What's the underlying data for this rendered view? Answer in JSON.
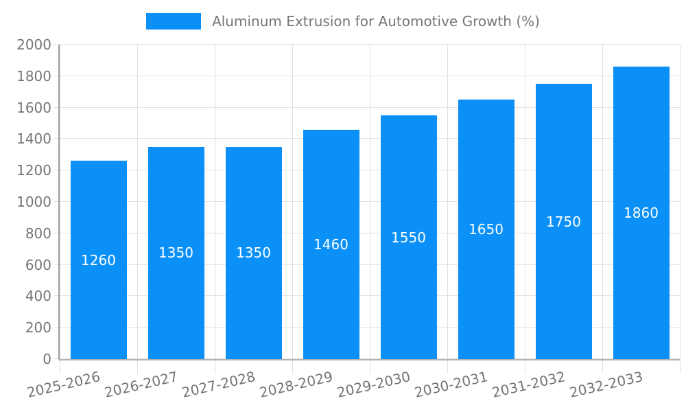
{
  "legend": {
    "label": "Aluminum Extrusion for Automotive Growth (%)"
  },
  "colors": {
    "bar": "#0a90f7",
    "bar_label": "#ffffff",
    "axis_line": "#9e9e9e",
    "gridline": "#e2e2e2",
    "text": "#757575",
    "background": "#ffffff"
  },
  "chart_data": {
    "type": "bar",
    "title": "Aluminum Extrusion for Automotive Growth (%)",
    "categories": [
      "2025-2026",
      "2026-2027",
      "2027-2028",
      "2028-2029",
      "2029-2030",
      "2030-2031",
      "2031-2032",
      "2032-2033"
    ],
    "values": [
      1260,
      1350,
      1350,
      1460,
      1550,
      1650,
      1750,
      1860
    ],
    "xlabel": "",
    "ylabel": "",
    "ylim": [
      0,
      2000
    ],
    "ytick_step": 200,
    "yticks": [
      0,
      200,
      400,
      600,
      800,
      1000,
      1200,
      1400,
      1600,
      1800,
      2000
    ],
    "grid": true,
    "x_label_rotation_deg": -13,
    "legend_position": "top-center",
    "bar_labels_inside": true
  }
}
